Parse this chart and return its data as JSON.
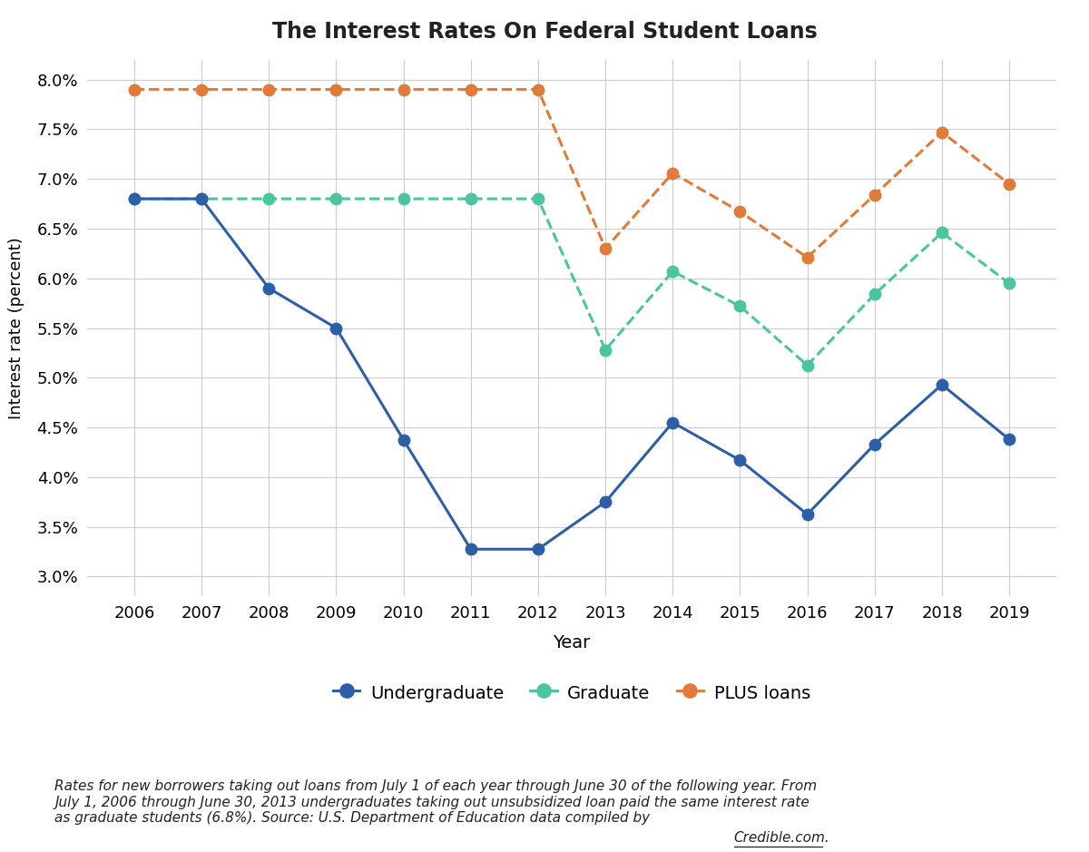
{
  "years": [
    2006,
    2007,
    2008,
    2009,
    2010,
    2011,
    2012,
    2013,
    2014,
    2015,
    2016,
    2017,
    2018,
    2019
  ],
  "undergraduate": [
    6.8,
    6.8,
    5.9,
    5.5,
    4.375,
    3.275,
    3.275,
    3.75,
    4.55,
    4.17,
    3.625,
    4.33,
    4.93,
    4.38
  ],
  "graduate": [
    6.8,
    6.8,
    6.8,
    6.8,
    6.8,
    6.8,
    6.8,
    5.28,
    6.07,
    5.72,
    5.125,
    5.84,
    6.46,
    5.95
  ],
  "plus_loans": [
    7.9,
    7.9,
    7.9,
    7.9,
    7.9,
    7.9,
    7.9,
    6.3,
    7.06,
    6.67,
    6.21,
    6.84,
    7.47,
    6.95
  ],
  "undergraduate_color": "#2d5fa8",
  "graduate_color": "#4bc4a0",
  "plus_color": "#e07b39",
  "title": "The Interest Rates On Federal Student Loans",
  "xlabel": "Year",
  "ylabel": "Interest rate (percent)",
  "ylim": [
    2.8,
    8.2
  ],
  "yticks": [
    3.0,
    3.5,
    4.0,
    4.5,
    5.0,
    5.5,
    6.0,
    6.5,
    7.0,
    7.5,
    8.0
  ],
  "background_color": "#ffffff",
  "grid_color": "#cccccc",
  "footnote_main": "Rates for new borrowers taking out loans from July 1 of each year through June 30 of the following year. From\nJuly 1, 2006 through June 30, 2013 undergraduates taking out unsubsidized loan paid the same interest rate\nas graduate students (6.8%). Source: U.S. Department of Education data compiled by ",
  "footnote_link": "Credible.com",
  "footnote_end": ".",
  "marker_size": 9,
  "line_width": 2.2
}
